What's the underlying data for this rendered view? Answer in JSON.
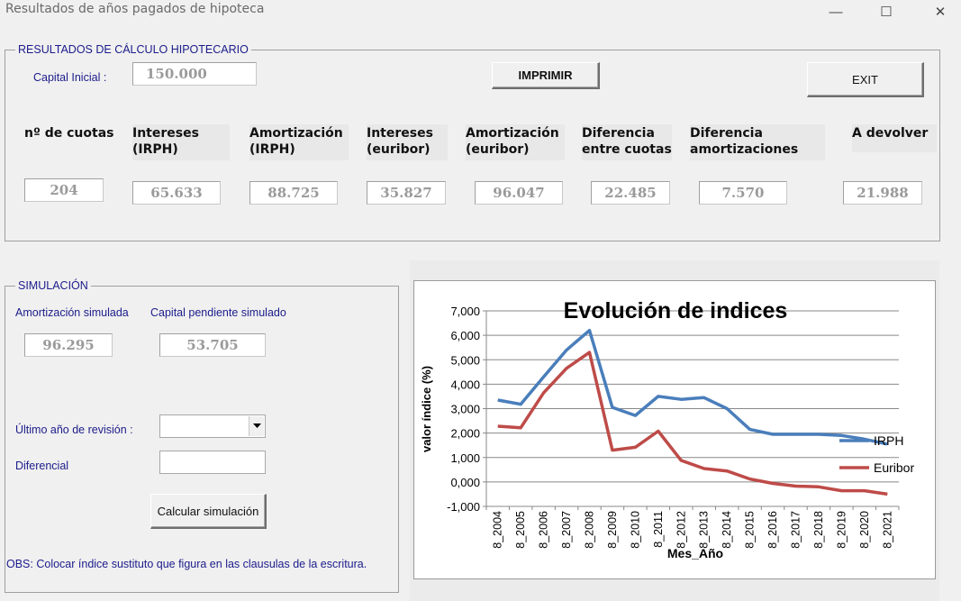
{
  "window": {
    "title": "Resultados de años pagados de hipoteca",
    "minimize_glyph": "—",
    "maximize_glyph": "☐",
    "close_glyph": "✕"
  },
  "results": {
    "legend": "RESULTADOS DE CÁLCULO HIPOTECARIO",
    "capital_label": "Capital Inicial :",
    "capital_value": "150.000",
    "print_label": "IMPRIMIR",
    "exit_label": "EXIT",
    "columns": [
      {
        "line1": "nº de cuotas",
        "line2": "",
        "value": "204"
      },
      {
        "line1": "Intereses",
        "line2": "(IRPH)",
        "value": "65.633"
      },
      {
        "line1": "Amortización",
        "line2": "(IRPH)",
        "value": "88.725"
      },
      {
        "line1": "Intereses",
        "line2": "(euribor)",
        "value": "35.827"
      },
      {
        "line1": "Amortización",
        "line2": "(euribor)",
        "value": "96.047"
      },
      {
        "line1": "Diferencia",
        "line2": "entre cuotas",
        "value": "22.485"
      },
      {
        "line1": "Diferencia",
        "line2": "amortizaciones",
        "value": "7.570"
      },
      {
        "line1": "A devolver",
        "line2": "",
        "value": "21.988"
      }
    ]
  },
  "simulation": {
    "legend": "SIMULACIÓN",
    "amort_label": "Amortización simulada",
    "capital_label": "Capital pendiente simulado",
    "amort_value": "96.295",
    "capital_value": "53.705",
    "year_label": "Último año de revisión :",
    "year_value": "",
    "diff_label": "Diferencial",
    "diff_value": "",
    "calc_label": "Calcular simulación",
    "note": "OBS: Colocar índice sustituto que figura en las clausulas de la escritura."
  },
  "chart_data": {
    "type": "line",
    "title": "Evolución de indices",
    "xlabel": "Mes_Año",
    "ylabel": "valor índice (%)",
    "ylim": [
      -1,
      7
    ],
    "ytick_step": 1,
    "grid": true,
    "legend_position": "right",
    "categories": [
      "8_2004",
      "8_2005",
      "8_2006",
      "8_2007",
      "8_2008",
      "8_2009",
      "8_2010",
      "8_2011",
      "8_2012",
      "8_2013",
      "8_2014",
      "8_2015",
      "8_2016",
      "8_2017",
      "8_2018",
      "8_2019",
      "8_2020",
      "8_2021"
    ],
    "series": [
      {
        "name": "IRPH",
        "color": "#4a7ebb",
        "values": [
          3.35,
          3.18,
          4.3,
          5.4,
          6.2,
          3.05,
          2.72,
          3.5,
          3.38,
          3.45,
          3.0,
          2.15,
          1.95,
          1.95,
          1.95,
          1.9,
          1.75,
          1.55
        ]
      },
      {
        "name": "Euribor",
        "color": "#be4b48",
        "values": [
          2.28,
          2.22,
          3.65,
          4.65,
          5.3,
          1.3,
          1.42,
          2.08,
          0.88,
          0.55,
          0.45,
          0.12,
          -0.06,
          -0.17,
          -0.2,
          -0.36,
          -0.36,
          -0.5
        ]
      }
    ]
  }
}
